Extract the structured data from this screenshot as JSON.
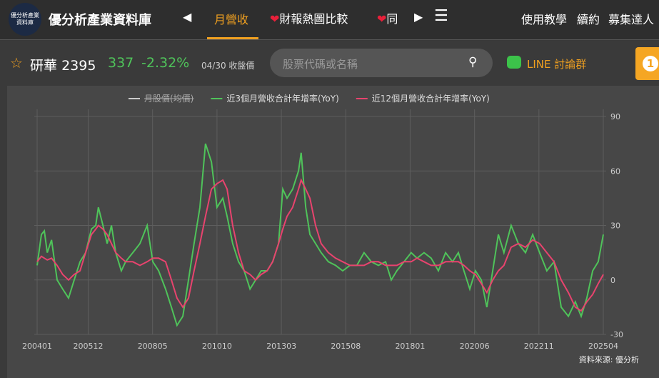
{
  "header": {
    "logo_text": "優分析產業資料庫",
    "brand": "優分析產業資料庫",
    "tabs": [
      "月營收",
      "財報熱圖比較",
      "同"
    ],
    "links": [
      "使用教學",
      "續約",
      "募集達人"
    ]
  },
  "stock": {
    "name": "研華",
    "code": "2395",
    "price": "337",
    "change": "-2.32%",
    "date": "04/30",
    "price_note": "收盤價",
    "search_placeholder": "股票代碼或名稱",
    "line_group": "LINE 討論群",
    "badge": "1"
  },
  "chart_data": {
    "type": "line",
    "source": "資料來源: 優分析",
    "x": [
      2004.0,
      2004.16,
      2004.27,
      2004.38,
      2004.54,
      2004.75,
      2004.96,
      2005.18,
      2005.39,
      2005.61,
      2005.82,
      2006.04,
      2006.2,
      2006.3,
      2006.47,
      2006.63,
      2006.79,
      2006.95,
      2007.16,
      2007.32,
      2007.59,
      2007.86,
      2008.13,
      2008.34,
      2008.56,
      2008.82,
      2009.04,
      2009.25,
      2009.47,
      2009.68,
      2009.89,
      2010.11,
      2010.32,
      2010.54,
      2010.75,
      2010.97,
      2011.13,
      2011.34,
      2011.56,
      2011.77,
      2011.99,
      2012.2,
      2012.41,
      2012.63,
      2012.84,
      2013.06,
      2013.22,
      2013.38,
      2013.59,
      2013.81,
      2013.91,
      2014.08,
      2014.24,
      2014.45,
      2014.66,
      2014.93,
      2015.2,
      2015.47,
      2015.74,
      2016.0,
      2016.27,
      2016.54,
      2016.81,
      2017.08,
      2017.29,
      2017.5,
      2017.77,
      2018.04,
      2018.26,
      2018.52,
      2018.79,
      2019.06,
      2019.33,
      2019.59,
      2019.81,
      2020.02,
      2020.24,
      2020.45,
      2020.67,
      2020.88,
      2021.1,
      2021.31,
      2021.52,
      2021.79,
      2022.06,
      2022.33,
      2022.6,
      2022.86,
      2023.13,
      2023.4,
      2023.67,
      2023.94,
      2024.2,
      2024.42,
      2024.63,
      2024.85,
      2025.06,
      2025.25
    ],
    "xlim": [
      2004.0,
      2025.25
    ],
    "xticks": [
      {
        "value": 2004.0,
        "label": "200401"
      },
      {
        "value": 2005.917,
        "label": "200512"
      },
      {
        "value": 2008.333,
        "label": "200805"
      },
      {
        "value": 2010.75,
        "label": "201010"
      },
      {
        "value": 2013.167,
        "label": "201303"
      },
      {
        "value": 2015.583,
        "label": "201508"
      },
      {
        "value": 2018.0,
        "label": "201801"
      },
      {
        "value": 2020.417,
        "label": "202006"
      },
      {
        "value": 2022.833,
        "label": "202211"
      },
      {
        "value": 2025.25,
        "label": "202504"
      }
    ],
    "ylim": [
      -30,
      90
    ],
    "yticks": [
      -30,
      0,
      30,
      60,
      90
    ],
    "grid": true,
    "hidden_series": {
      "name": "月股價(均價)",
      "color": "#cccccc"
    },
    "series": [
      {
        "name": "近3個月營收合計年增率(YoY)",
        "color": "#4fc35a",
        "values": [
          8,
          25,
          27,
          15,
          22,
          0,
          -5,
          -10,
          0,
          10,
          15,
          28,
          30,
          40,
          30,
          20,
          30,
          15,
          5,
          10,
          15,
          20,
          30,
          10,
          5,
          -5,
          -15,
          -25,
          -20,
          0,
          20,
          40,
          75,
          65,
          40,
          45,
          35,
          20,
          10,
          5,
          -5,
          0,
          5,
          5,
          10,
          20,
          50,
          45,
          50,
          60,
          70,
          40,
          25,
          20,
          15,
          10,
          8,
          5,
          8,
          8,
          15,
          10,
          8,
          10,
          0,
          5,
          10,
          15,
          12,
          15,
          12,
          5,
          15,
          10,
          15,
          5,
          -5,
          5,
          0,
          -15,
          5,
          25,
          15,
          30,
          20,
          15,
          25,
          15,
          5,
          10,
          -15,
          -20,
          -12,
          -20,
          -10,
          5,
          10,
          25
        ]
      },
      {
        "name": "近12個月營收合計年增率(YoY)",
        "color": "#e8436e",
        "values": [
          10,
          13,
          12,
          11,
          12,
          8,
          3,
          0,
          3,
          5,
          15,
          25,
          28,
          30,
          28,
          25,
          20,
          15,
          12,
          10,
          10,
          8,
          10,
          12,
          12,
          10,
          0,
          -10,
          -15,
          -10,
          5,
          20,
          35,
          50,
          53,
          55,
          50,
          30,
          15,
          5,
          3,
          0,
          3,
          5,
          10,
          20,
          28,
          35,
          40,
          50,
          55,
          50,
          45,
          30,
          20,
          15,
          12,
          10,
          8,
          8,
          8,
          10,
          10,
          8,
          8,
          8,
          10,
          10,
          12,
          10,
          8,
          8,
          10,
          10,
          10,
          8,
          5,
          3,
          -2,
          -7,
          0,
          5,
          8,
          18,
          20,
          18,
          22,
          20,
          15,
          10,
          0,
          -7,
          -15,
          -17,
          -12,
          -8,
          -2,
          3
        ]
      }
    ]
  }
}
